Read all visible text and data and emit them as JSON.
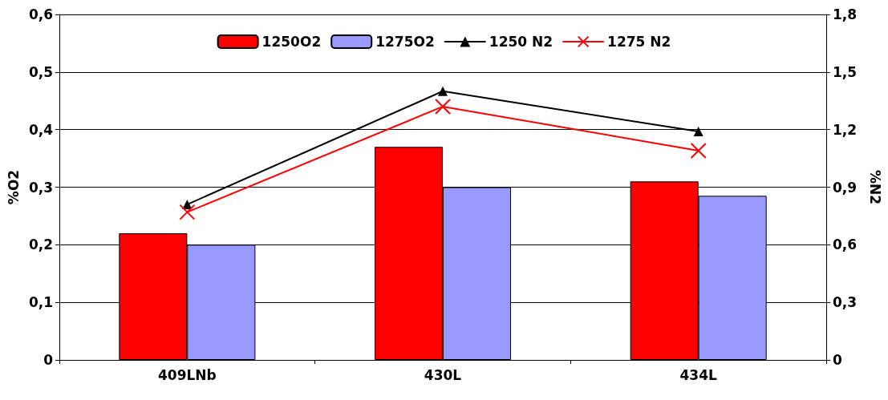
{
  "chart_data": {
    "type": "bar",
    "ylabel": "%O2",
    "y2label": "%N2",
    "categories": [
      "409LNb",
      "430L",
      "434L"
    ],
    "series": [
      {
        "name": "1250O2",
        "color": "#ff0000",
        "values": [
          0.22,
          0.37,
          0.31
        ]
      },
      {
        "name": "1275O2",
        "color": "#9999ff",
        "values": [
          0.2,
          0.3,
          0.285
        ]
      },
      {
        "name": "1250 N2",
        "type": "line",
        "axis": "y2",
        "color": "#000000",
        "marker": "triangle",
        "values": [
          0.81,
          1.4,
          1.19
        ]
      },
      {
        "name": "1275 N2",
        "type": "line",
        "axis": "y2",
        "color": "#ff0000",
        "marker": "cross",
        "values": [
          0.77,
          1.32,
          1.09
        ]
      }
    ],
    "ylim": [
      0,
      0.6
    ],
    "yticks": [
      0,
      {
        "value": 0.1,
        "label": "0,1"
      },
      {
        "value": 0.2,
        "label": "0,2"
      },
      {
        "value": 0.3,
        "label": "0,3"
      },
      {
        "value": 0.4,
        "label": "0,4"
      },
      {
        "value": 0.5,
        "label": "0,5"
      },
      {
        "value": 0.6,
        "label": "0,6"
      }
    ],
    "y2lim": [
      0,
      1.8
    ],
    "y2ticks": [
      0,
      {
        "value": 0.3,
        "label": "0,3"
      },
      {
        "value": 0.6,
        "label": "0,6"
      },
      {
        "value": 0.9,
        "label": "0,9"
      },
      {
        "value": 1.2,
        "label": "1,2"
      },
      {
        "value": 1.5,
        "label": "1,5"
      },
      {
        "value": 1.8,
        "label": "1,8"
      }
    ],
    "grid": "y",
    "legend": "top",
    "line_style": "solid"
  }
}
